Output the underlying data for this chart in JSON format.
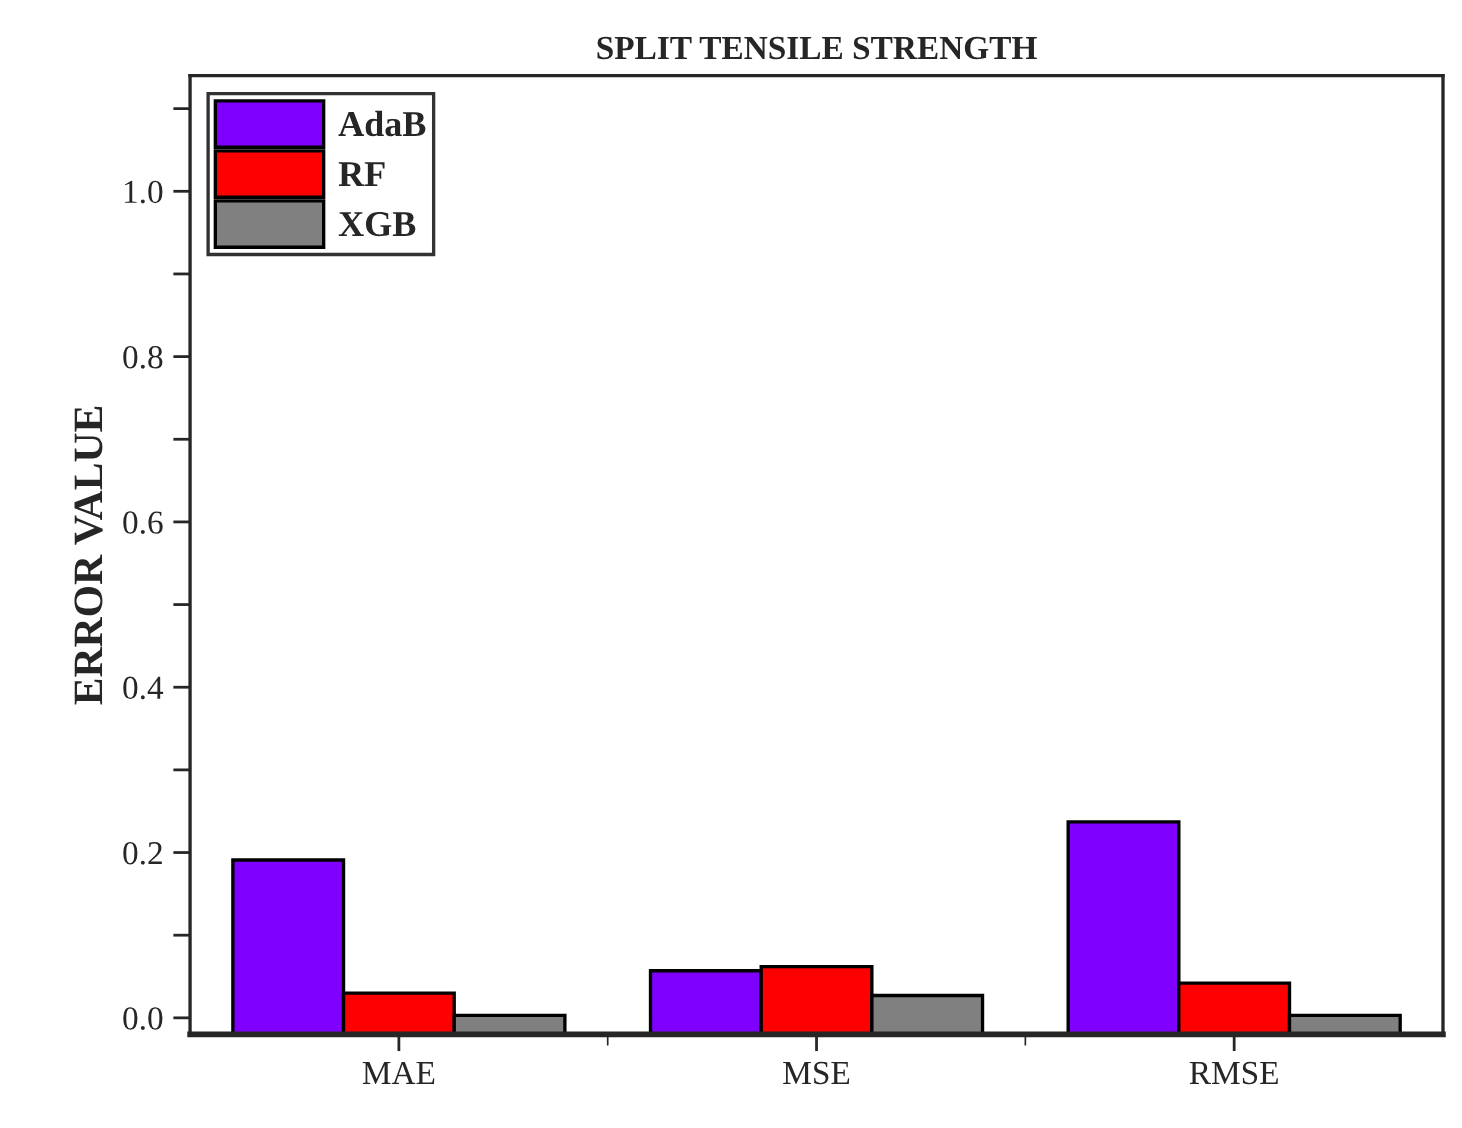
{
  "chart_data": {
    "type": "bar",
    "title": "SPLIT TENSILE STRENGTH",
    "ylabel": "ERROR VALUE",
    "categories": [
      "MAE",
      "MSE",
      "RMSE"
    ],
    "series": [
      {
        "name": "AdaB",
        "color": "#7f00ff",
        "values": [
          0.211,
          0.077,
          0.257
        ],
        "base": [
          -0.02,
          -0.02,
          -0.02
        ]
      },
      {
        "name": "RF",
        "color": "#ff0000",
        "values": [
          0.05,
          0.082,
          0.062
        ],
        "base": [
          -0.02,
          -0.02,
          -0.02
        ]
      },
      {
        "name": "XGB",
        "color": "#808080",
        "values": [
          0.023,
          0.047,
          0.023
        ],
        "base": [
          -0.02,
          -0.02,
          -0.02
        ]
      }
    ],
    "ylim": [
      -0.02,
      1.14
    ],
    "yticks": [
      {
        "value": 0.0,
        "label": "0.0"
      },
      {
        "value": 0.1,
        "label": null
      },
      {
        "value": 0.2,
        "label": "0.2"
      },
      {
        "value": 0.3,
        "label": null
      },
      {
        "value": 0.4,
        "label": "0.4"
      },
      {
        "value": 0.5,
        "label": null
      },
      {
        "value": 0.6,
        "label": "0.6"
      },
      {
        "value": 0.7,
        "label": null
      },
      {
        "value": 0.8,
        "label": "0.8"
      },
      {
        "value": 0.9,
        "label": null
      },
      {
        "value": 1.0,
        "label": "1.0"
      },
      {
        "value": 1.1,
        "label": null
      }
    ],
    "legend": "top left",
    "grid": false
  }
}
